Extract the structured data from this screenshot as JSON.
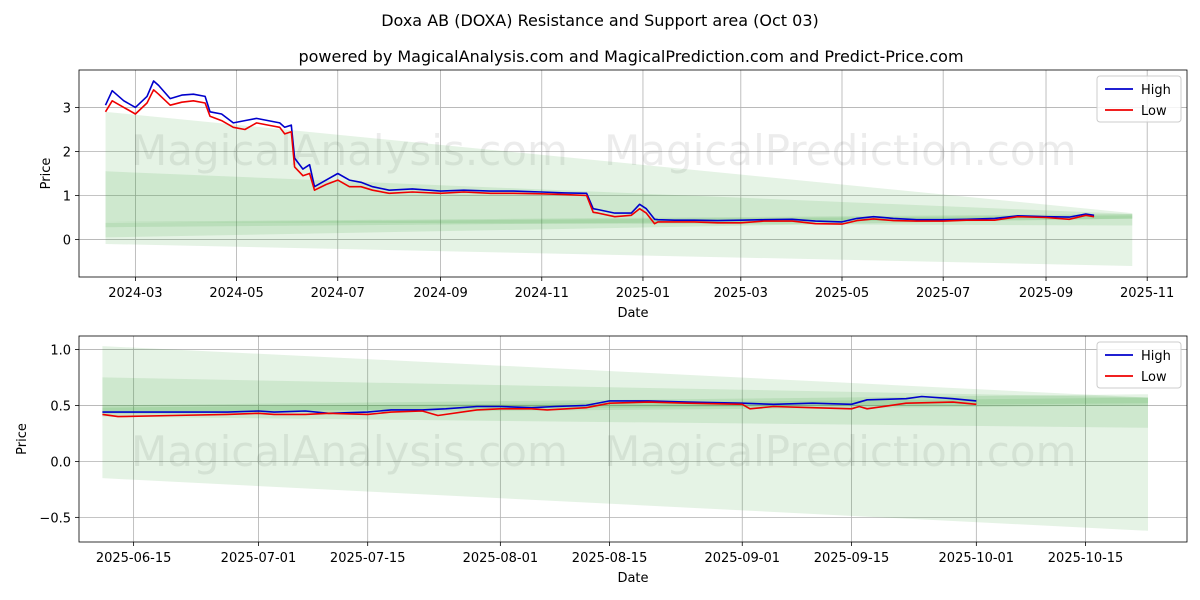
{
  "chart_data": [
    {
      "type": "line",
      "title": "Doxa AB (DOXA) Resistance and Support area (Oct 03)",
      "subtitle": "powered by MagicalAnalysis.com and MagicalPrediction.com and Predict-Price.com",
      "xlabel": "Date",
      "ylabel": "Price",
      "xlim": [
        "2024-01-27",
        "2025-11-25"
      ],
      "ylim": [
        -0.85,
        3.85
      ],
      "xticks": [
        {
          "date": "2024-03-01",
          "label": "2024-03"
        },
        {
          "date": "2024-05-01",
          "label": "2024-05"
        },
        {
          "date": "2024-07-01",
          "label": "2024-07"
        },
        {
          "date": "2024-09-01",
          "label": "2024-09"
        },
        {
          "date": "2024-11-01",
          "label": "2024-11"
        },
        {
          "date": "2025-01-01",
          "label": "2025-01"
        },
        {
          "date": "2025-03-01",
          "label": "2025-03"
        },
        {
          "date": "2025-05-01",
          "label": "2025-05"
        },
        {
          "date": "2025-07-01",
          "label": "2025-07"
        },
        {
          "date": "2025-09-01",
          "label": "2025-09"
        },
        {
          "date": "2025-11-01",
          "label": "2025-11"
        }
      ],
      "yticks": [
        0,
        1,
        2,
        3
      ],
      "ytick_labels": [
        "0",
        "1",
        "2",
        "3"
      ],
      "legend": {
        "position": "top-right",
        "entries": [
          "High",
          "Low"
        ]
      },
      "watermarks": [
        "MagicalAnalysis.com",
        "MagicalPrediction.com"
      ],
      "bands": [
        {
          "x": [
            "2024-02-12",
            "2025-10-23"
          ],
          "upper": [
            2.9,
            0.6
          ],
          "lower": [
            -0.1,
            -0.6
          ],
          "alpha": 0.12
        },
        {
          "x": [
            "2024-02-12",
            "2025-10-23"
          ],
          "upper": [
            1.55,
            0.58
          ],
          "lower": [
            0.4,
            0.32
          ],
          "alpha": 0.12
        },
        {
          "x": [
            "2024-02-12",
            "2025-10-23"
          ],
          "upper": [
            0.4,
            0.58
          ],
          "lower": [
            0.05,
            0.48
          ],
          "alpha": 0.12
        },
        {
          "x": [
            "2024-02-12",
            "2025-10-23"
          ],
          "upper": [
            0.38,
            0.55
          ],
          "lower": [
            0.28,
            0.47
          ],
          "alpha": 0.12
        }
      ],
      "series": [
        {
          "name": "High",
          "color": "#0000cc",
          "x": [
            "2024-02-12",
            "2024-02-16",
            "2024-02-23",
            "2024-03-01",
            "2024-03-08",
            "2024-03-12",
            "2024-03-15",
            "2024-03-22",
            "2024-03-29",
            "2024-04-05",
            "2024-04-12",
            "2024-04-15",
            "2024-04-22",
            "2024-04-29",
            "2024-05-06",
            "2024-05-13",
            "2024-05-20",
            "2024-05-27",
            "2024-05-30",
            "2024-06-03",
            "2024-06-05",
            "2024-06-10",
            "2024-06-14",
            "2024-06-17",
            "2024-06-24",
            "2024-07-01",
            "2024-07-08",
            "2024-07-15",
            "2024-07-22",
            "2024-08-01",
            "2024-08-15",
            "2024-09-01",
            "2024-09-15",
            "2024-10-01",
            "2024-10-15",
            "2024-11-01",
            "2024-11-15",
            "2024-11-28",
            "2024-12-02",
            "2024-12-05",
            "2024-12-15",
            "2024-12-25",
            "2024-12-30",
            "2025-01-03",
            "2025-01-08",
            "2025-01-10",
            "2025-01-20",
            "2025-02-01",
            "2025-02-15",
            "2025-03-01",
            "2025-03-15",
            "2025-04-01",
            "2025-04-15",
            "2025-05-01",
            "2025-05-10",
            "2025-05-20",
            "2025-06-01",
            "2025-06-15",
            "2025-07-01",
            "2025-07-15",
            "2025-08-01",
            "2025-08-15",
            "2025-09-01",
            "2025-09-15",
            "2025-09-25",
            "2025-09-30"
          ],
          "y": [
            3.05,
            3.38,
            3.15,
            3.0,
            3.25,
            3.6,
            3.5,
            3.2,
            3.28,
            3.3,
            3.25,
            2.9,
            2.85,
            2.65,
            2.7,
            2.75,
            2.7,
            2.65,
            2.55,
            2.6,
            1.85,
            1.6,
            1.7,
            1.2,
            1.35,
            1.5,
            1.35,
            1.3,
            1.2,
            1.12,
            1.15,
            1.1,
            1.12,
            1.1,
            1.1,
            1.08,
            1.06,
            1.05,
            0.7,
            0.68,
            0.6,
            0.6,
            0.8,
            0.7,
            0.46,
            0.45,
            0.44,
            0.44,
            0.43,
            0.44,
            0.45,
            0.46,
            0.42,
            0.4,
            0.48,
            0.52,
            0.48,
            0.45,
            0.45,
            0.46,
            0.48,
            0.54,
            0.52,
            0.51,
            0.58,
            0.55
          ]
        },
        {
          "name": "Low",
          "color": "#ee0000",
          "x": [
            "2024-02-12",
            "2024-02-16",
            "2024-02-23",
            "2024-03-01",
            "2024-03-08",
            "2024-03-12",
            "2024-03-15",
            "2024-03-22",
            "2024-03-29",
            "2024-04-05",
            "2024-04-12",
            "2024-04-15",
            "2024-04-22",
            "2024-04-29",
            "2024-05-06",
            "2024-05-13",
            "2024-05-20",
            "2024-05-27",
            "2024-05-30",
            "2024-06-03",
            "2024-06-05",
            "2024-06-10",
            "2024-06-14",
            "2024-06-17",
            "2024-06-24",
            "2024-07-01",
            "2024-07-08",
            "2024-07-15",
            "2024-07-22",
            "2024-08-01",
            "2024-08-15",
            "2024-09-01",
            "2024-09-15",
            "2024-10-01",
            "2024-10-15",
            "2024-11-01",
            "2024-11-15",
            "2024-11-28",
            "2024-12-02",
            "2024-12-05",
            "2024-12-15",
            "2024-12-25",
            "2024-12-30",
            "2025-01-03",
            "2025-01-08",
            "2025-01-10",
            "2025-01-20",
            "2025-02-01",
            "2025-02-15",
            "2025-03-01",
            "2025-03-15",
            "2025-04-01",
            "2025-04-15",
            "2025-05-01",
            "2025-05-10",
            "2025-05-20",
            "2025-06-01",
            "2025-06-15",
            "2025-07-01",
            "2025-07-15",
            "2025-08-01",
            "2025-08-15",
            "2025-09-01",
            "2025-09-15",
            "2025-09-25",
            "2025-09-30"
          ],
          "y": [
            2.9,
            3.15,
            3.0,
            2.85,
            3.1,
            3.4,
            3.3,
            3.05,
            3.12,
            3.15,
            3.1,
            2.8,
            2.7,
            2.55,
            2.5,
            2.65,
            2.6,
            2.55,
            2.4,
            2.45,
            1.65,
            1.45,
            1.5,
            1.12,
            1.25,
            1.35,
            1.2,
            1.2,
            1.12,
            1.05,
            1.08,
            1.05,
            1.08,
            1.05,
            1.05,
            1.04,
            1.02,
            1.0,
            0.62,
            0.6,
            0.52,
            0.55,
            0.7,
            0.6,
            0.36,
            0.4,
            0.4,
            0.4,
            0.38,
            0.38,
            0.42,
            0.42,
            0.36,
            0.35,
            0.43,
            0.47,
            0.43,
            0.42,
            0.42,
            0.44,
            0.44,
            0.52,
            0.5,
            0.46,
            0.55,
            0.52
          ]
        }
      ]
    },
    {
      "type": "line",
      "xlabel": "Date",
      "ylabel": "Price",
      "xlim": [
        "2025-06-08",
        "2025-10-28"
      ],
      "ylim": [
        -0.72,
        1.12
      ],
      "xticks": [
        {
          "date": "2025-06-15",
          "label": "2025-06-15"
        },
        {
          "date": "2025-07-01",
          "label": "2025-07-01"
        },
        {
          "date": "2025-07-15",
          "label": "2025-07-15"
        },
        {
          "date": "2025-08-01",
          "label": "2025-08-01"
        },
        {
          "date": "2025-08-15",
          "label": "2025-08-15"
        },
        {
          "date": "2025-09-01",
          "label": "2025-09-01"
        },
        {
          "date": "2025-09-15",
          "label": "2025-09-15"
        },
        {
          "date": "2025-10-01",
          "label": "2025-10-01"
        },
        {
          "date": "2025-10-15",
          "label": "2025-10-15"
        }
      ],
      "yticks": [
        -0.5,
        0.0,
        0.5,
        1.0
      ],
      "ytick_labels": [
        "−0.5",
        "0.0",
        "0.5",
        "1.0"
      ],
      "legend": {
        "position": "top-right",
        "entries": [
          "High",
          "Low"
        ]
      },
      "watermarks": [
        "MagicalAnalysis.com",
        "MagicalPrediction.com"
      ],
      "bands": [
        {
          "x": [
            "2025-06-11",
            "2025-10-23"
          ],
          "upper": [
            1.03,
            0.57
          ],
          "lower": [
            -0.15,
            -0.62
          ],
          "alpha": 0.12
        },
        {
          "x": [
            "2025-06-11",
            "2025-10-23"
          ],
          "upper": [
            0.75,
            0.57
          ],
          "lower": [
            0.4,
            0.3
          ],
          "alpha": 0.12
        },
        {
          "x": [
            "2025-06-11",
            "2025-10-23"
          ],
          "upper": [
            0.5,
            0.6
          ],
          "lower": [
            0.42,
            0.5
          ],
          "alpha": 0.12
        },
        {
          "x": [
            "2025-06-11",
            "2025-10-23"
          ],
          "upper": [
            0.48,
            0.57
          ],
          "lower": [
            0.44,
            0.52
          ],
          "alpha": 0.12
        }
      ],
      "series": [
        {
          "name": "High",
          "color": "#0000cc",
          "x": [
            "2025-06-11",
            "2025-06-13",
            "2025-06-20",
            "2025-06-27",
            "2025-07-01",
            "2025-07-03",
            "2025-07-07",
            "2025-07-10",
            "2025-07-15",
            "2025-07-18",
            "2025-07-22",
            "2025-07-25",
            "2025-07-29",
            "2025-08-01",
            "2025-08-05",
            "2025-08-08",
            "2025-08-12",
            "2025-08-15",
            "2025-08-20",
            "2025-08-25",
            "2025-09-01",
            "2025-09-05",
            "2025-09-10",
            "2025-09-15",
            "2025-09-17",
            "2025-09-22",
            "2025-09-24",
            "2025-09-28",
            "2025-10-01"
          ],
          "y": [
            0.44,
            0.44,
            0.44,
            0.44,
            0.45,
            0.44,
            0.45,
            0.43,
            0.44,
            0.46,
            0.46,
            0.47,
            0.49,
            0.49,
            0.48,
            0.49,
            0.5,
            0.54,
            0.54,
            0.53,
            0.52,
            0.51,
            0.52,
            0.51,
            0.55,
            0.56,
            0.58,
            0.56,
            0.54
          ]
        },
        {
          "name": "Low",
          "color": "#ee0000",
          "x": [
            "2025-06-11",
            "2025-06-13",
            "2025-06-20",
            "2025-06-27",
            "2025-07-01",
            "2025-07-03",
            "2025-07-07",
            "2025-07-10",
            "2025-07-15",
            "2025-07-18",
            "2025-07-22",
            "2025-07-24",
            "2025-07-29",
            "2025-08-01",
            "2025-08-05",
            "2025-08-07",
            "2025-08-12",
            "2025-08-15",
            "2025-08-20",
            "2025-08-25",
            "2025-09-01",
            "2025-09-02",
            "2025-09-05",
            "2025-09-10",
            "2025-09-15",
            "2025-09-16",
            "2025-09-17",
            "2025-09-22",
            "2025-09-28",
            "2025-10-01"
          ],
          "y": [
            0.42,
            0.4,
            0.41,
            0.42,
            0.43,
            0.42,
            0.42,
            0.43,
            0.42,
            0.44,
            0.45,
            0.41,
            0.46,
            0.47,
            0.47,
            0.46,
            0.48,
            0.52,
            0.53,
            0.52,
            0.51,
            0.47,
            0.49,
            0.48,
            0.47,
            0.49,
            0.47,
            0.52,
            0.53,
            0.51
          ]
        }
      ]
    }
  ]
}
